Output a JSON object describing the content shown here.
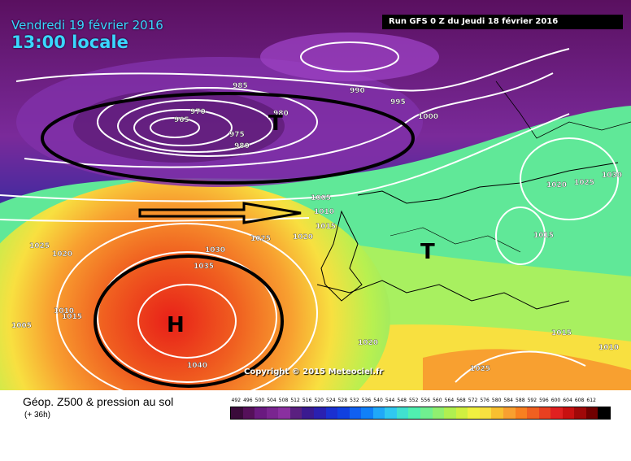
{
  "header": {
    "date": "Vendredi 19 février 2016",
    "time": "13:00 locale",
    "run": "Run GFS 0 Z du Jeudi 18 février 2016"
  },
  "map": {
    "isobars": [
      "985",
      "970",
      "965",
      "975",
      "980",
      "980",
      "990",
      "995",
      "1000",
      "1005",
      "1010",
      "1015",
      "1020",
      "1025",
      "1025",
      "1020",
      "1010",
      "1015",
      "1005",
      "1030",
      "1035",
      "1040",
      "1020",
      "1025",
      "1015",
      "1015",
      "1010",
      "1020",
      "1025",
      "1030"
    ],
    "pressure_systems": [
      {
        "label": "T",
        "kind": "low-north"
      },
      {
        "label": "H",
        "kind": "high-atlantic"
      },
      {
        "label": "T",
        "kind": "low-europe"
      }
    ],
    "copyright": "Copyright © 2015 Meteociel.fr"
  },
  "legend": {
    "title": "Géop. Z500 & pression au sol",
    "subtitle": "(+ 36h)",
    "scale": [
      "492",
      "496",
      "500",
      "504",
      "508",
      "512",
      "516",
      "520",
      "524",
      "528",
      "532",
      "536",
      "540",
      "544",
      "548",
      "552",
      "556",
      "560",
      "564",
      "568",
      "572",
      "576",
      "580",
      "584",
      "588",
      "592",
      "596",
      "600",
      "604",
      "608",
      "612"
    ],
    "colors": [
      "#3a0a3a",
      "#55105a",
      "#6a1a80",
      "#7a2590",
      "#8a30a0",
      "#5a2080",
      "#3a1a90",
      "#2a20b0",
      "#1a30d0",
      "#1040e0",
      "#1060f0",
      "#1080f8",
      "#20a8f8",
      "#30c8f0",
      "#40e0d0",
      "#50f0b0",
      "#70f090",
      "#90f070",
      "#b0f050",
      "#d0f040",
      "#f0f040",
      "#f8e040",
      "#f8c030",
      "#f8a030",
      "#f88020",
      "#f06020",
      "#e84020",
      "#e02020",
      "#c81010",
      "#a00808",
      "#700000",
      "#000000"
    ],
    "colors_note": ""
  }
}
